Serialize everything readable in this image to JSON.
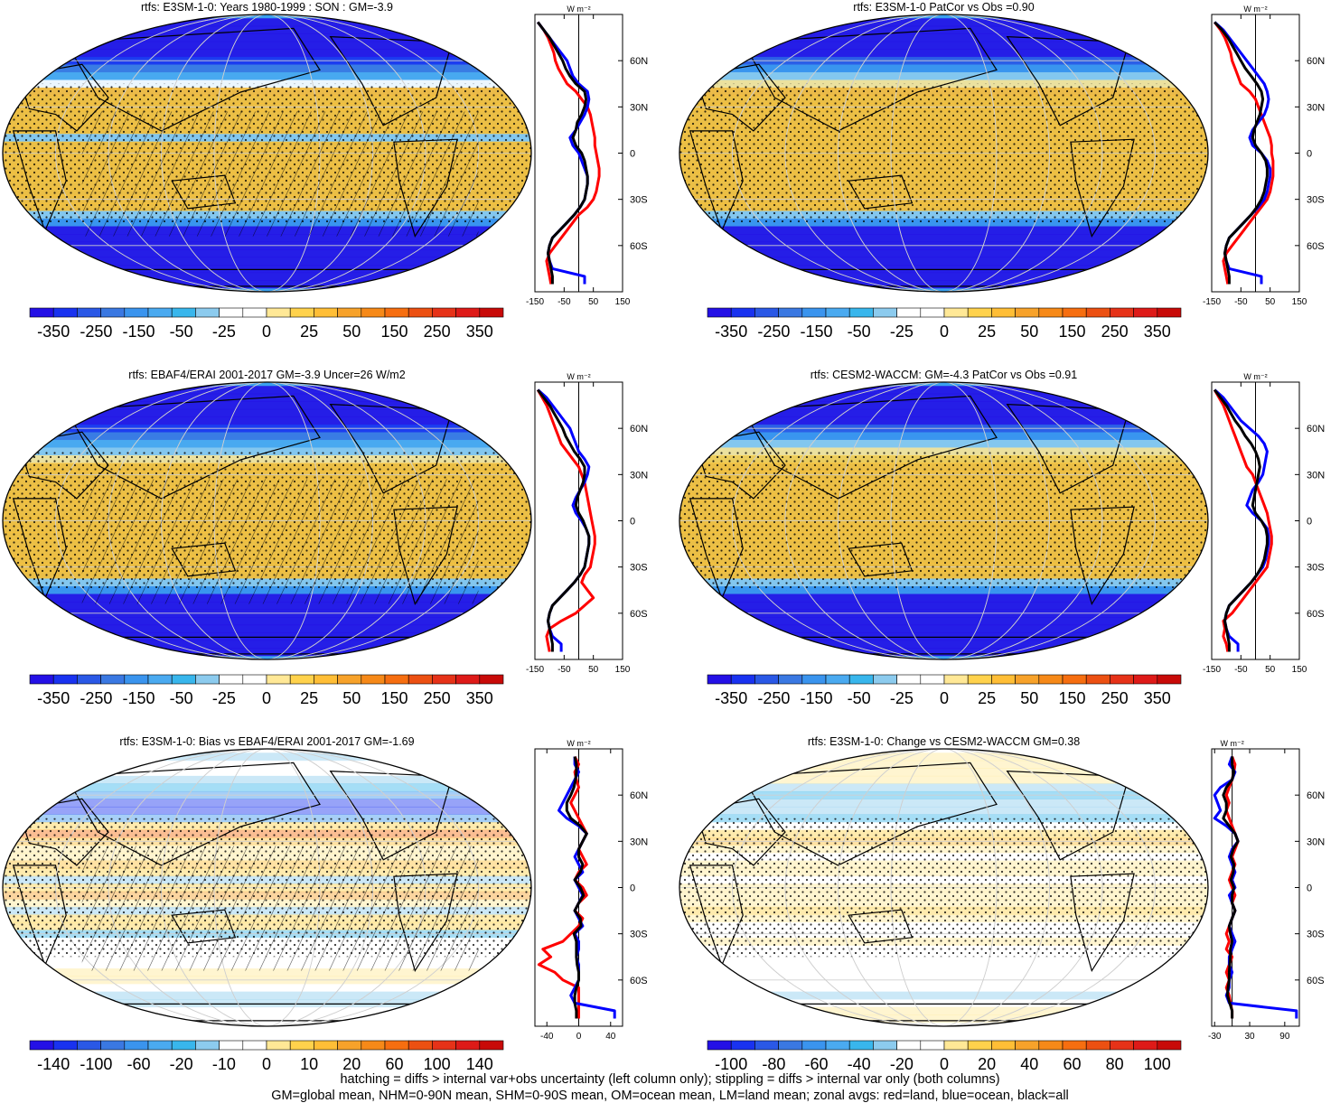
{
  "colors": {
    "scale": [
      "#2410e6",
      "#1932f0",
      "#2a58e6",
      "#3a78e2",
      "#3a94ee",
      "#4aaaf0",
      "#38b6ec",
      "#8ccbee",
      "#ffffff",
      "#ffffff",
      "#ffe896",
      "#ffd24c",
      "#ffbe36",
      "#f7a22a",
      "#f68918",
      "#f66e10",
      "#ec5012",
      "#e63218",
      "#de1a18",
      "#c80a08"
    ],
    "ocean_base": "#3aa0ee",
    "warm_base": "#ffc233",
    "land_line": "#000000",
    "grid": "#cfcfcf",
    "zonal_land": "#ff0000",
    "zonal_ocean": "#0000ff",
    "zonal_all": "#000000"
  },
  "panels": [
    {
      "title": "rtfs: E3SM-1-0: Years 1980-1999 : SON : GM=-3.9",
      "colorbar_labels": [
        "-350",
        "-250",
        "-150",
        "-50",
        "-25",
        "0",
        "25",
        "50",
        "150",
        "250",
        "350"
      ],
      "hatching": true,
      "zonal": {
        "unit": "W m⁻²",
        "x_ticks": [
          "-150",
          "-50",
          "50",
          "150"
        ],
        "x_range": [
          -150,
          150
        ],
        "y_ticks": [
          "60N",
          "30N",
          "0",
          "30S",
          "60S"
        ],
        "lat": [
          85,
          80,
          75,
          70,
          65,
          60,
          55,
          50,
          45,
          40,
          35,
          30,
          25,
          20,
          15,
          10,
          5,
          0,
          -5,
          -10,
          -15,
          -20,
          -25,
          -30,
          -35,
          -40,
          -45,
          -50,
          -55,
          -60,
          -65,
          -70,
          -75,
          -80,
          -85
        ],
        "land": [
          -140,
          -120,
          -105,
          -95,
          -85,
          -80,
          -70,
          -55,
          -40,
          -10,
          10,
          30,
          40,
          45,
          50,
          55,
          55,
          60,
          65,
          70,
          70,
          65,
          60,
          50,
          30,
          0,
          -20,
          -40,
          -60,
          -80,
          -100,
          -110,
          -105,
          -100,
          -95
        ],
        "ocean": [
          -140,
          -120,
          -100,
          -80,
          -60,
          -40,
          -30,
          -20,
          0,
          30,
          35,
          30,
          20,
          5,
          -10,
          -30,
          -20,
          0,
          10,
          20,
          30,
          30,
          25,
          20,
          5,
          -15,
          -40,
          -65,
          -90,
          -100,
          -105,
          -100,
          -90,
          20,
          20
        ],
        "all": [
          -140,
          -120,
          -100,
          -85,
          -70,
          -55,
          -45,
          -30,
          -10,
          20,
          25,
          20,
          10,
          -5,
          -10,
          -20,
          -10,
          10,
          20,
          25,
          30,
          30,
          25,
          20,
          5,
          -15,
          -40,
          -65,
          -90,
          -100,
          -105,
          -100,
          -95,
          -90,
          -90
        ]
      }
    },
    {
      "title": "rtfs: E3SM-1-0 PatCor vs Obs =0.90",
      "colorbar_labels": [
        "-350",
        "-250",
        "-150",
        "-50",
        "-25",
        "0",
        "25",
        "50",
        "150",
        "250",
        "350"
      ],
      "hatching": false,
      "zonal": {
        "unit": "W m⁻²",
        "x_ticks": [
          "-150",
          "-50",
          "50",
          "150"
        ],
        "x_range": [
          -150,
          150
        ],
        "y_ticks": [
          "60N",
          "30N",
          "0",
          "30S",
          "60S"
        ],
        "lat": [
          85,
          80,
          75,
          70,
          65,
          60,
          55,
          50,
          45,
          40,
          35,
          30,
          25,
          20,
          15,
          10,
          5,
          0,
          -5,
          -10,
          -15,
          -20,
          -25,
          -30,
          -35,
          -40,
          -45,
          -50,
          -55,
          -60,
          -65,
          -70,
          -75,
          -80,
          -85
        ],
        "land": [
          -140,
          -120,
          -105,
          -95,
          -85,
          -80,
          -70,
          -60,
          -50,
          -20,
          0,
          10,
          20,
          30,
          40,
          50,
          55,
          55,
          60,
          60,
          60,
          55,
          50,
          40,
          20,
          0,
          -20,
          -40,
          -60,
          -80,
          -100,
          -110,
          -105,
          -100,
          -95
        ],
        "ocean": [
          -140,
          -110,
          -90,
          -70,
          -50,
          -30,
          -10,
          10,
          30,
          40,
          45,
          40,
          30,
          10,
          -10,
          -20,
          -10,
          20,
          40,
          50,
          50,
          45,
          40,
          30,
          10,
          -15,
          -40,
          -65,
          -90,
          -100,
          -105,
          -100,
          -90,
          20,
          20
        ],
        "all": [
          -140,
          -115,
          -95,
          -80,
          -65,
          -50,
          -35,
          -15,
          5,
          20,
          25,
          20,
          15,
          5,
          -5,
          -10,
          0,
          20,
          35,
          40,
          40,
          35,
          30,
          20,
          5,
          -15,
          -40,
          -65,
          -90,
          -100,
          -105,
          -100,
          -95,
          -90,
          -90
        ]
      }
    },
    {
      "title": "rtfs: EBAF4/ERAI 2001-2017 GM=-3.9 Uncer=26 W/m2",
      "colorbar_labels": [
        "-350",
        "-250",
        "-150",
        "-50",
        "-25",
        "0",
        "25",
        "50",
        "150",
        "250",
        "350"
      ],
      "hatching": true,
      "zonal": {
        "unit": "W m⁻²",
        "x_ticks": [
          "-150",
          "-50",
          "50",
          "150"
        ],
        "x_range": [
          -150,
          150
        ],
        "y_ticks": [
          "60N",
          "30N",
          "0",
          "30S",
          "60S"
        ],
        "lat": [
          85,
          80,
          75,
          70,
          65,
          60,
          55,
          50,
          45,
          40,
          35,
          30,
          25,
          20,
          15,
          10,
          5,
          0,
          -5,
          -10,
          -15,
          -20,
          -25,
          -30,
          -35,
          -40,
          -45,
          -50,
          -55,
          -60,
          -65,
          -70,
          -75,
          -80,
          -85
        ],
        "land": [
          -140,
          -125,
          -110,
          -100,
          -90,
          -80,
          -70,
          -60,
          -40,
          -20,
          0,
          10,
          20,
          25,
          30,
          35,
          40,
          45,
          50,
          55,
          55,
          50,
          45,
          40,
          20,
          10,
          30,
          50,
          20,
          -10,
          -60,
          -100,
          -110,
          -105,
          -100
        ],
        "ocean": [
          -140,
          -110,
          -90,
          -70,
          -50,
          -30,
          -20,
          -10,
          0,
          20,
          35,
          30,
          20,
          5,
          -10,
          -20,
          -10,
          10,
          25,
          35,
          35,
          30,
          25,
          20,
          5,
          -15,
          -40,
          -65,
          -90,
          -100,
          -105,
          -100,
          -90,
          -60,
          -60
        ],
        "all": [
          -140,
          -120,
          -100,
          -85,
          -70,
          -55,
          -45,
          -30,
          -15,
          5,
          20,
          20,
          15,
          5,
          -5,
          -10,
          0,
          15,
          25,
          35,
          35,
          30,
          25,
          20,
          5,
          -15,
          -40,
          -65,
          -90,
          -100,
          -105,
          -100,
          -95,
          -90,
          -90
        ]
      }
    },
    {
      "title": "rtfs: CESM2-WACCM: GM=-4.3 PatCor vs Obs =0.91",
      "colorbar_labels": [
        "-350",
        "-250",
        "-150",
        "-50",
        "-25",
        "0",
        "25",
        "50",
        "150",
        "250",
        "350"
      ],
      "hatching": false,
      "zonal": {
        "unit": "W m⁻²",
        "x_ticks": [
          "-150",
          "-50",
          "50",
          "150"
        ],
        "x_range": [
          -150,
          150
        ],
        "y_ticks": [
          "60N",
          "30N",
          "0",
          "30S",
          "60S"
        ],
        "lat": [
          85,
          80,
          75,
          70,
          65,
          60,
          55,
          50,
          45,
          40,
          35,
          30,
          25,
          20,
          15,
          10,
          5,
          0,
          -5,
          -10,
          -15,
          -20,
          -25,
          -30,
          -35,
          -40,
          -45,
          -50,
          -55,
          -60,
          -65,
          -70,
          -75,
          -80,
          -85
        ],
        "land": [
          -140,
          -125,
          -110,
          -100,
          -90,
          -80,
          -70,
          -60,
          -50,
          -40,
          -30,
          -10,
          0,
          10,
          20,
          30,
          40,
          45,
          50,
          55,
          55,
          50,
          45,
          40,
          20,
          0,
          -20,
          -40,
          -60,
          -80,
          -110,
          -105,
          -110,
          -100,
          -95
        ],
        "ocean": [
          -140,
          -110,
          -90,
          -70,
          -50,
          -20,
          10,
          30,
          40,
          35,
          30,
          25,
          10,
          -10,
          -20,
          -30,
          -10,
          20,
          40,
          45,
          45,
          40,
          35,
          25,
          5,
          -15,
          -40,
          -65,
          -90,
          -100,
          -105,
          -100,
          -90,
          -60,
          -60
        ],
        "all": [
          -140,
          -120,
          -100,
          -85,
          -70,
          -50,
          -35,
          -15,
          0,
          10,
          15,
          10,
          5,
          0,
          -5,
          -10,
          0,
          20,
          35,
          40,
          40,
          35,
          30,
          20,
          5,
          -15,
          -40,
          -65,
          -90,
          -100,
          -105,
          -100,
          -95,
          -90,
          -90
        ]
      }
    },
    {
      "title": "rtfs: E3SM-1-0: Bias vs EBAF4/ERAI 2001-2017  GM=-1.69",
      "colorbar_labels": [
        "-140",
        "-100",
        "-60",
        "-20",
        "-10",
        "0",
        "10",
        "20",
        "60",
        "100",
        "140"
      ],
      "hatching": true,
      "zonal": {
        "unit": "W m⁻²",
        "x_ticks": [
          "-40",
          "0",
          "40"
        ],
        "x_range": [
          -55,
          55
        ],
        "y_ticks": [
          "60N",
          "30N",
          "0",
          "30S",
          "60S"
        ],
        "lat": [
          85,
          80,
          75,
          70,
          65,
          60,
          55,
          50,
          45,
          40,
          35,
          30,
          25,
          20,
          15,
          10,
          5,
          0,
          -5,
          -10,
          -15,
          -20,
          -25,
          -30,
          -35,
          -40,
          -45,
          -50,
          -55,
          -60,
          -65,
          -70,
          -75,
          -80,
          -85
        ],
        "land": [
          -5,
          0,
          -5,
          -3,
          0,
          -5,
          -10,
          -5,
          0,
          5,
          10,
          5,
          0,
          5,
          10,
          0,
          -5,
          5,
          10,
          0,
          -5,
          5,
          0,
          -10,
          -20,
          -45,
          -35,
          -50,
          -30,
          -20,
          0,
          0,
          0,
          0,
          0
        ],
        "ocean": [
          -5,
          -5,
          0,
          -5,
          -10,
          -15,
          -20,
          -25,
          -15,
          0,
          10,
          5,
          0,
          -5,
          0,
          5,
          -5,
          0,
          5,
          0,
          -5,
          0,
          5,
          -5,
          0,
          0,
          -3,
          0,
          0,
          0,
          -5,
          -10,
          -5,
          45,
          45
        ],
        "all": [
          -5,
          -3,
          -3,
          -4,
          -6,
          -10,
          -15,
          -15,
          -10,
          2,
          10,
          5,
          0,
          0,
          5,
          2,
          -5,
          2,
          6,
          0,
          -5,
          2,
          3,
          -6,
          -3,
          -3,
          -3,
          -2,
          0,
          0,
          -3,
          -5,
          -5,
          -3,
          -3
        ]
      }
    },
    {
      "title": "rtfs: E3SM-1-0: Change vs CESM2-WACCM GM=0.38",
      "colorbar_labels": [
        "-100",
        "-80",
        "-60",
        "-40",
        "-20",
        "0",
        "20",
        "40",
        "60",
        "80",
        "100"
      ],
      "hatching": false,
      "zonal": {
        "unit": "W m⁻²",
        "x_ticks": [
          "-30",
          "30",
          "90"
        ],
        "x_range": [
          -35,
          115
        ],
        "y_ticks": [
          "60N",
          "30N",
          "0",
          "30S",
          "60S"
        ],
        "lat": [
          85,
          80,
          75,
          70,
          65,
          60,
          55,
          50,
          45,
          40,
          35,
          30,
          25,
          20,
          15,
          10,
          5,
          0,
          -5,
          -10,
          -15,
          -20,
          -25,
          -30,
          -35,
          -40,
          -45,
          -50,
          -55,
          -60,
          -65,
          -70,
          -75,
          -80,
          -85
        ],
        "land": [
          0,
          5,
          3,
          0,
          -5,
          -10,
          -5,
          -10,
          -5,
          0,
          5,
          10,
          5,
          0,
          5,
          0,
          -5,
          0,
          5,
          0,
          5,
          0,
          -5,
          -10,
          -5,
          -10,
          0,
          -5,
          -10,
          -5,
          -10,
          -5,
          -3,
          0,
          0
        ],
        "ocean": [
          0,
          -5,
          5,
          0,
          -20,
          -30,
          -25,
          -20,
          -30,
          -10,
          5,
          10,
          0,
          -5,
          0,
          5,
          0,
          5,
          -5,
          0,
          5,
          0,
          -5,
          0,
          5,
          0,
          -5,
          -5,
          0,
          -5,
          -5,
          -10,
          -5,
          110,
          110
        ],
        "all": [
          0,
          0,
          3,
          0,
          -10,
          -15,
          -10,
          -10,
          -15,
          -5,
          5,
          10,
          2,
          -2,
          3,
          2,
          -2,
          3,
          0,
          0,
          5,
          0,
          -5,
          -3,
          0,
          -3,
          -3,
          -4,
          -5,
          -5,
          -7,
          -8,
          -4,
          0,
          0
        ]
      }
    }
  ],
  "footer": {
    "line1": "hatching = diffs > internal var+obs uncertainty (left column only); stippling = diffs > internal var only (both columns)",
    "line2": "GM=global mean, NHM=0-90N mean, SHM=0-90S mean, OM=ocean mean, LM=land mean; zonal avgs: red=land, blue=ocean, black=all"
  }
}
